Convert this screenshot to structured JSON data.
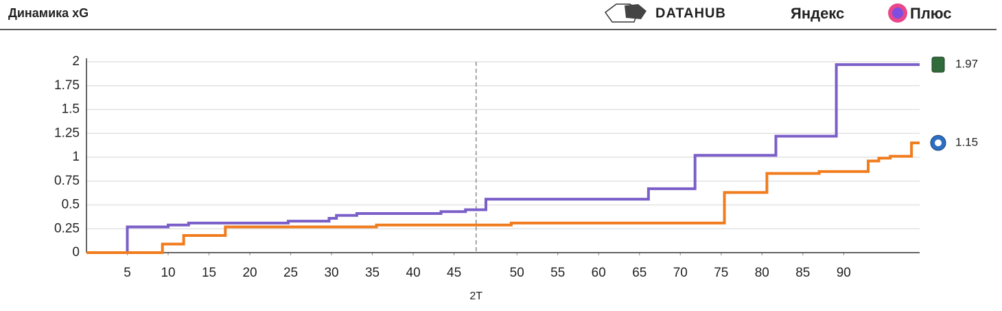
{
  "header": {
    "title": "Динамика xG",
    "brand": "DATAHUB",
    "partner": "Яндекс",
    "partner_product": "Плюс"
  },
  "chart_data": {
    "type": "step",
    "series": [
      {
        "color": "#7b5fc9",
        "x": [
          0,
          5,
          10,
          12.5,
          24.7,
          29.7,
          30.6,
          33.1,
          43.4,
          46.4,
          48.9,
          68.8,
          74.5,
          84.4,
          91.8,
          102
        ],
        "values": [
          0,
          0.27,
          0.29,
          0.31,
          0.33,
          0.36,
          0.39,
          0.41,
          0.43,
          0.45,
          0.56,
          0.67,
          1.02,
          1.22,
          1.97,
          1.97
        ]
      },
      {
        "color": "#f07c1e",
        "x": [
          0,
          9.3,
          11.9,
          17,
          35.5,
          52,
          78.1,
          83.3,
          89.7,
          95.7,
          97,
          98.4,
          101,
          102
        ],
        "values": [
          0,
          0.09,
          0.18,
          0.27,
          0.29,
          0.31,
          0.63,
          0.83,
          0.85,
          0.96,
          0.99,
          1.01,
          1.15,
          1.15
        ]
      }
    ],
    "xlim": [
      0,
      102
    ],
    "xticks": [
      5,
      10,
      15,
      20,
      25,
      30,
      35,
      40,
      45,
      {
        "value": 52.7,
        "label": "50"
      },
      {
        "value": 57.7,
        "label": "55"
      },
      {
        "value": 62.7,
        "label": "60"
      },
      {
        "value": 67.7,
        "label": "65"
      },
      {
        "value": 72.7,
        "label": "70"
      },
      {
        "value": 77.7,
        "label": "75"
      },
      {
        "value": 82.7,
        "label": "80"
      },
      {
        "value": 87.7,
        "label": "85"
      },
      {
        "value": 92.7,
        "label": "90"
      }
    ],
    "ylim": [
      0,
      2
    ],
    "yticks": [
      0,
      0.25,
      0.5,
      0.75,
      1,
      1.25,
      1.5,
      1.75,
      2
    ],
    "grid": true,
    "period_marker": {
      "x": 47.7,
      "label": "2T"
    }
  }
}
